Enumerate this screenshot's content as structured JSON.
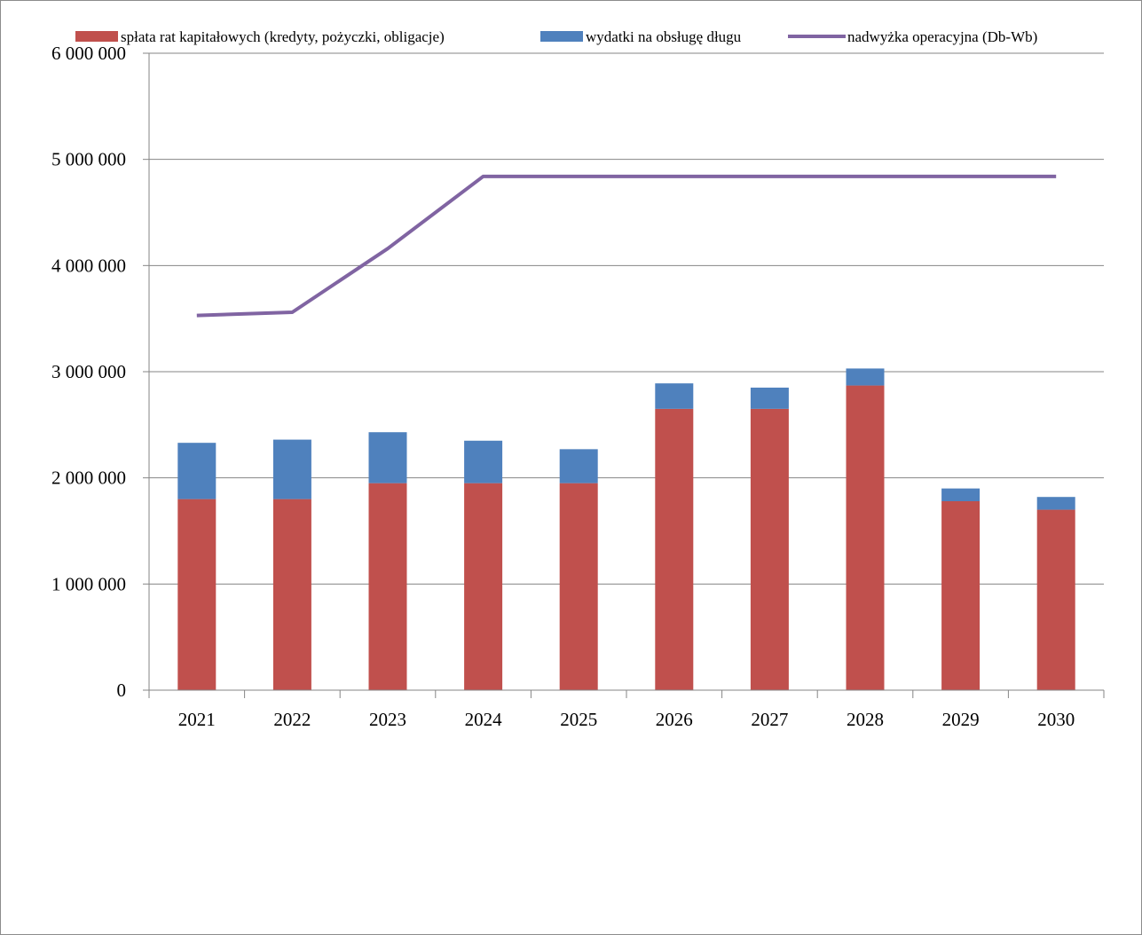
{
  "chart_data": {
    "type": "bar",
    "stacked": true,
    "title": "",
    "xlabel": "",
    "ylabel": "",
    "categories": [
      "2021",
      "2022",
      "2023",
      "2024",
      "2025",
      "2026",
      "2027",
      "2028",
      "2029",
      "2030"
    ],
    "ylim": [
      0,
      6000000
    ],
    "y_ticks": [
      0,
      1000000,
      2000000,
      3000000,
      4000000,
      5000000,
      6000000
    ],
    "y_tick_labels": [
      "0",
      "1 000 000",
      "2 000 000",
      "3 000 000",
      "4 000 000",
      "5 000 000",
      "6 000 000"
    ],
    "grid": true,
    "legend_position": "top",
    "series": [
      {
        "name": "spłata rat kapitałowych (kredyty, pożyczki, obligacje)",
        "kind": "bar",
        "color": "#c0504d",
        "values": [
          1800000,
          1800000,
          1950000,
          1950000,
          1950000,
          2650000,
          2650000,
          2870000,
          1780000,
          1700000
        ]
      },
      {
        "name": "wydatki na obsługę długu",
        "kind": "bar",
        "color": "#4f81bd",
        "values": [
          530000,
          560000,
          480000,
          400000,
          320000,
          240000,
          200000,
          160000,
          120000,
          120000
        ]
      },
      {
        "name": "nadwyżka operacyjna (Db-Wb)",
        "kind": "line",
        "color": "#8064a2",
        "values": [
          3530000,
          3560000,
          4160000,
          4840000,
          4840000,
          4840000,
          4840000,
          4840000,
          4840000,
          4840000
        ]
      }
    ]
  }
}
